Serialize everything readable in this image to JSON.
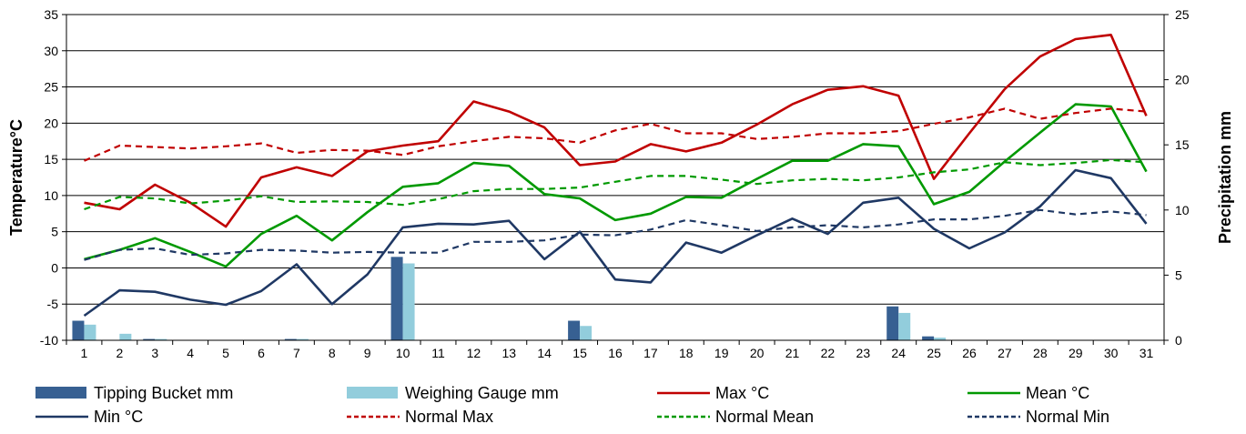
{
  "chart_data": {
    "type": "bar+line",
    "x": [
      1,
      2,
      3,
      4,
      5,
      6,
      7,
      8,
      9,
      10,
      11,
      12,
      13,
      14,
      15,
      16,
      17,
      18,
      19,
      20,
      21,
      22,
      23,
      24,
      25,
      26,
      27,
      28,
      29,
      30,
      31
    ],
    "ylabel_left": "Temperature°C",
    "ylabel_right": "Precipitation mm",
    "ylim_left": [
      -10,
      35
    ],
    "yticks_left": [
      -10,
      -5,
      0,
      5,
      10,
      15,
      20,
      25,
      30,
      35
    ],
    "ylim_right": [
      0,
      25
    ],
    "yticks_right": [
      0,
      5,
      10,
      15,
      20,
      25
    ],
    "grid": "horizontal",
    "legend_position": "bottom",
    "bar_series": [
      {
        "name": "Tipping Bucket mm",
        "color": "#376092",
        "axis": "right",
        "values": [
          1.5,
          0,
          0.1,
          0,
          0,
          0,
          0.1,
          0,
          0,
          6.4,
          0,
          0,
          0,
          0,
          1.5,
          0,
          0,
          0,
          0,
          0,
          0,
          0,
          0,
          2.6,
          0.3,
          0,
          0,
          0,
          0,
          0,
          0
        ]
      },
      {
        "name": "Weighing Gauge mm",
        "color": "#92CDDC",
        "axis": "right",
        "values": [
          1.2,
          0.5,
          0.1,
          0,
          0,
          0,
          0.1,
          0,
          0,
          5.9,
          0,
          0,
          0,
          0,
          1.1,
          0,
          0,
          0,
          0,
          0,
          0,
          0,
          0,
          2.1,
          0.2,
          0,
          0,
          0,
          0,
          0,
          0
        ]
      }
    ],
    "line_series": [
      {
        "name": "Max °C",
        "color": "#C00000",
        "dash": "solid",
        "values": [
          9,
          8.1,
          11.5,
          9,
          5.7,
          12.5,
          13.9,
          12.7,
          16.1,
          16.9,
          17.5,
          23,
          21.6,
          19.4,
          14.2,
          14.7,
          17.1,
          16.1,
          17.3,
          19.8,
          22.6,
          24.6,
          25.1,
          23.8,
          12.3,
          18.6,
          24.7,
          29.2,
          31.6,
          32.2,
          21
        ]
      },
      {
        "name": "Mean °C",
        "color": "#009900",
        "dash": "solid",
        "values": [
          1.2,
          2.5,
          4.1,
          2.2,
          0.2,
          4.7,
          7.2,
          3.8,
          7.7,
          11.2,
          11.7,
          14.5,
          14.1,
          10.2,
          9.6,
          6.6,
          7.5,
          9.8,
          9.7,
          12.3,
          14.8,
          14.8,
          17.1,
          16.8,
          8.8,
          10.5,
          14.7,
          18.7,
          22.6,
          22.3,
          13.3
        ]
      },
      {
        "name": "Min °C",
        "color": "#1F3864",
        "dash": "solid",
        "values": [
          -6.6,
          -3.1,
          -3.3,
          -4.4,
          -5.1,
          -3.2,
          0.5,
          -5,
          -0.9,
          5.6,
          6.1,
          6,
          6.5,
          1.2,
          5,
          -1.6,
          -2,
          3.5,
          2.1,
          4.5,
          6.8,
          4.7,
          9,
          9.7,
          5.4,
          2.7,
          4.9,
          8.5,
          13.5,
          12.4,
          6.1
        ]
      },
      {
        "name": "Normal Max",
        "color": "#C00000",
        "dash": "dashed",
        "values": [
          14.8,
          16.9,
          16.7,
          16.5,
          16.8,
          17.2,
          15.9,
          16.3,
          16.2,
          15.6,
          16.8,
          17.5,
          18.1,
          17.9,
          17.3,
          19,
          19.9,
          18.6,
          18.6,
          17.8,
          18.1,
          18.6,
          18.6,
          18.9,
          19.9,
          20.8,
          22,
          20.6,
          21.4,
          22,
          21.6
        ]
      },
      {
        "name": "Normal Mean",
        "color": "#009900",
        "dash": "dashed",
        "values": [
          8.1,
          9.8,
          9.6,
          8.9,
          9.3,
          9.9,
          9.1,
          9.2,
          9.1,
          8.7,
          9.5,
          10.6,
          10.9,
          10.9,
          11.1,
          11.9,
          12.7,
          12.7,
          12.2,
          11.6,
          12.1,
          12.3,
          12.1,
          12.5,
          13.2,
          13.6,
          14.6,
          14.2,
          14.5,
          14.9,
          14.6
        ]
      },
      {
        "name": "Normal Min",
        "color": "#1F3864",
        "dash": "dashed",
        "values": [
          1.1,
          2.5,
          2.7,
          1.8,
          2,
          2.5,
          2.4,
          2.1,
          2.2,
          2.1,
          2.1,
          3.6,
          3.6,
          3.8,
          4.6,
          4.5,
          5.3,
          6.6,
          5.9,
          5.1,
          5.6,
          5.9,
          5.6,
          6,
          6.7,
          6.7,
          7.2,
          8,
          7.4,
          7.8,
          7.3
        ]
      }
    ]
  }
}
